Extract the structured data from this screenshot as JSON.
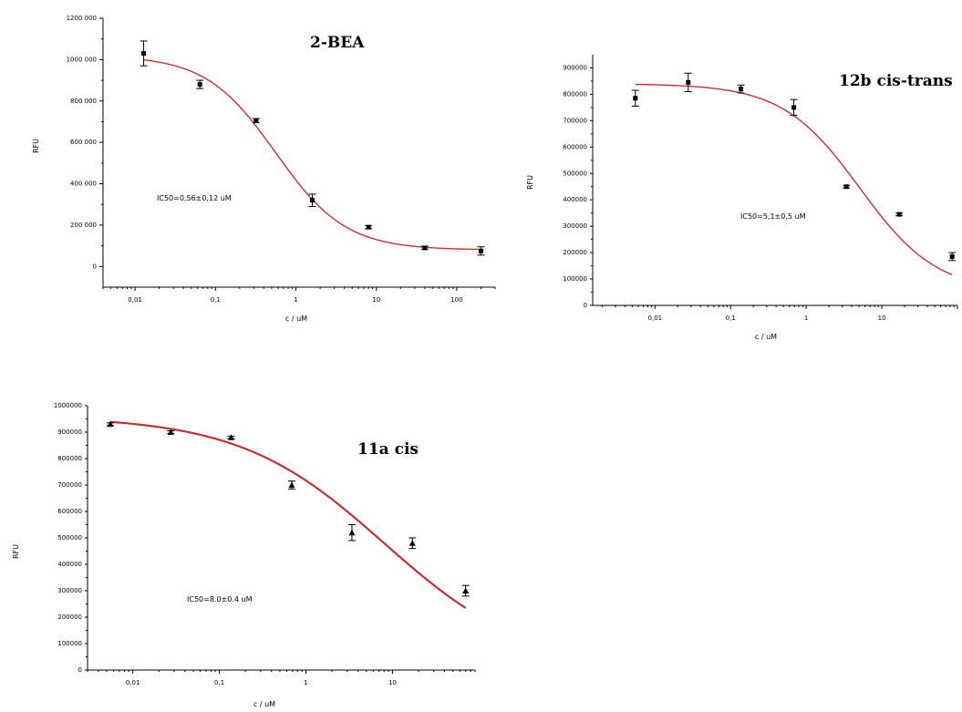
{
  "chart_data": [
    {
      "type": "scatter",
      "title": "2-BEA",
      "annotation": "IC50=0,56±0,12 uM",
      "xlabel": "c / uM",
      "ylabel": "RFU",
      "x_scale": "log",
      "xlim": [
        0.004,
        300
      ],
      "ylim": [
        -100000,
        1200000
      ],
      "x_ticks": [
        0.01,
        0.1,
        1,
        10,
        100
      ],
      "x_tick_labels": [
        "0,01",
        "0,1",
        "1",
        "10",
        "100"
      ],
      "y_ticks": [
        0,
        200000,
        400000,
        600000,
        800000,
        1000000,
        1200000
      ],
      "y_tick_labels": [
        "0",
        "200 000",
        "400 000",
        "600 000",
        "800 000",
        "1000 000",
        "1200 000"
      ],
      "marker": "square",
      "points": [
        {
          "x": 0.0128,
          "y": 1030000,
          "err": 60000
        },
        {
          "x": 0.064,
          "y": 880000,
          "err": 20000
        },
        {
          "x": 0.32,
          "y": 705000,
          "err": 10000
        },
        {
          "x": 1.6,
          "y": 320000,
          "err": 30000
        },
        {
          "x": 8,
          "y": 190000,
          "err": 8000
        },
        {
          "x": 40,
          "y": 90000,
          "err": 8000
        },
        {
          "x": 200,
          "y": 75000,
          "err": 20000
        }
      ],
      "fit": {
        "top": 1020000,
        "bottom": 80000,
        "ic50": 0.56,
        "hill": 1.0
      },
      "colors": {
        "fit": "#c8302f",
        "points": "#000000"
      }
    },
    {
      "type": "scatter",
      "title": "12b cis-trans",
      "annotation": "IC50=5,1±0,5 uM",
      "xlabel": "c / uM",
      "ylabel": "RFU",
      "x_scale": "log",
      "xlim": [
        0.0015,
        100
      ],
      "ylim": [
        0,
        950000
      ],
      "x_ticks": [
        0.01,
        0.1,
        1,
        10
      ],
      "x_tick_labels": [
        "0,01",
        "0,1",
        "1",
        "10"
      ],
      "y_ticks": [
        0,
        100000,
        200000,
        300000,
        400000,
        500000,
        600000,
        700000,
        800000,
        900000
      ],
      "y_tick_labels": [
        "0",
        "100000",
        "200000",
        "300000",
        "400000",
        "500000",
        "600000",
        "700000",
        "800000",
        "900000"
      ],
      "marker": "square",
      "points": [
        {
          "x": 0.0055,
          "y": 785000,
          "err": 30000
        },
        {
          "x": 0.0275,
          "y": 845000,
          "err": 35000
        },
        {
          "x": 0.137,
          "y": 820000,
          "err": 15000
        },
        {
          "x": 0.686,
          "y": 750000,
          "err": 30000
        },
        {
          "x": 3.4,
          "y": 450000,
          "err": 5000
        },
        {
          "x": 17,
          "y": 345000,
          "err": 5000
        },
        {
          "x": 85,
          "y": 185000,
          "err": 15000
        }
      ],
      "fit": {
        "top": 840000,
        "bottom": 50000,
        "ic50": 5.1,
        "hill": 0.85
      },
      "colors": {
        "fit": "#c8302f",
        "points": "#000000"
      }
    },
    {
      "type": "scatter",
      "title": "11a cis",
      "annotation": "IC50=8.0±0.4 uM",
      "xlabel": "c / uM",
      "ylabel": "RFU",
      "x_scale": "log",
      "xlim": [
        0.003,
        90
      ],
      "ylim": [
        0,
        1000000
      ],
      "x_ticks": [
        0.01,
        0.1,
        1,
        10
      ],
      "x_tick_labels": [
        "0,01",
        "0,1",
        "1",
        "10"
      ],
      "y_ticks": [
        0,
        100000,
        200000,
        300000,
        400000,
        500000,
        600000,
        700000,
        800000,
        900000,
        1000000
      ],
      "y_tick_labels": [
        "0",
        "100000",
        "200000",
        "300000",
        "400000",
        "500000",
        "600000",
        "700000",
        "800000",
        "900000",
        "1000000"
      ],
      "marker": "triangle",
      "points": [
        {
          "x": 0.0055,
          "y": 930000,
          "err": 5000
        },
        {
          "x": 0.0275,
          "y": 900000,
          "err": 5000
        },
        {
          "x": 0.137,
          "y": 880000,
          "err": 5000
        },
        {
          "x": 0.686,
          "y": 700000,
          "err": 15000
        },
        {
          "x": 3.4,
          "y": 520000,
          "err": 30000
        },
        {
          "x": 17,
          "y": 480000,
          "err": 20000
        },
        {
          "x": 70,
          "y": 300000,
          "err": 20000
        }
      ],
      "fit": {
        "top": 960000,
        "bottom": 0,
        "ic50": 8.0,
        "hill": 0.52
      },
      "colors": {
        "fit": "#c8302f",
        "points": "#000000"
      }
    }
  ]
}
